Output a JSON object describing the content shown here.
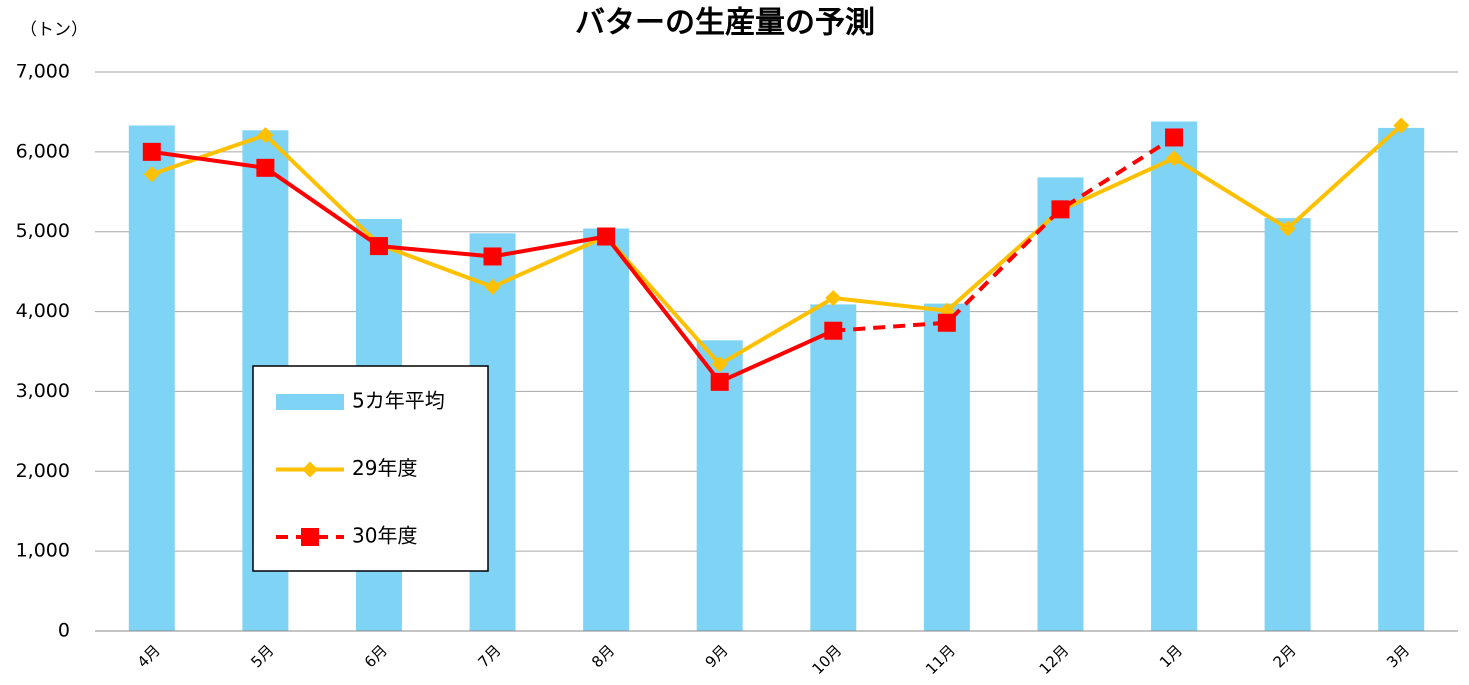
{
  "chart_data": {
    "type": "bar-line",
    "title": "バターの生産量の予測",
    "y_unit": "（トン）",
    "categories": [
      "4月",
      "5月",
      "6月",
      "7月",
      "8月",
      "9月",
      "10月",
      "11月",
      "12月",
      "1月",
      "2月",
      "3月"
    ],
    "series": [
      {
        "name": "5カ年平均",
        "kind": "bar",
        "color": "#7fd4f5",
        "values": [
          6330,
          6270,
          5160,
          4980,
          5040,
          3640,
          4090,
          4100,
          5680,
          6380,
          5170,
          6300
        ]
      },
      {
        "name": "29年度",
        "kind": "line",
        "marker": "diamond",
        "color": "#ffc000",
        "values": [
          5720,
          6210,
          4840,
          4310,
          4940,
          3340,
          4170,
          4010,
          5270,
          5920,
          5040,
          6330
        ]
      },
      {
        "name": "30年度",
        "kind": "line",
        "marker": "square",
        "color": "#ff0000",
        "dashed_from": 6,
        "values": [
          6000,
          5800,
          4820,
          4690,
          4940,
          3120,
          3760,
          3860,
          5280,
          6180,
          null,
          null
        ]
      }
    ],
    "ylim": [
      0,
      7000
    ],
    "yticks": [
      0,
      {
        "value": 1000,
        "label": "1,000"
      },
      {
        "value": 2000,
        "label": "2,000"
      },
      {
        "value": 3000,
        "label": "3,000"
      },
      {
        "value": 4000,
        "label": "4,000"
      },
      {
        "value": 5000,
        "label": "5,000"
      },
      {
        "value": 6000,
        "label": "6,000"
      },
      {
        "value": 7000,
        "label": "7,000"
      }
    ],
    "grid": true
  }
}
